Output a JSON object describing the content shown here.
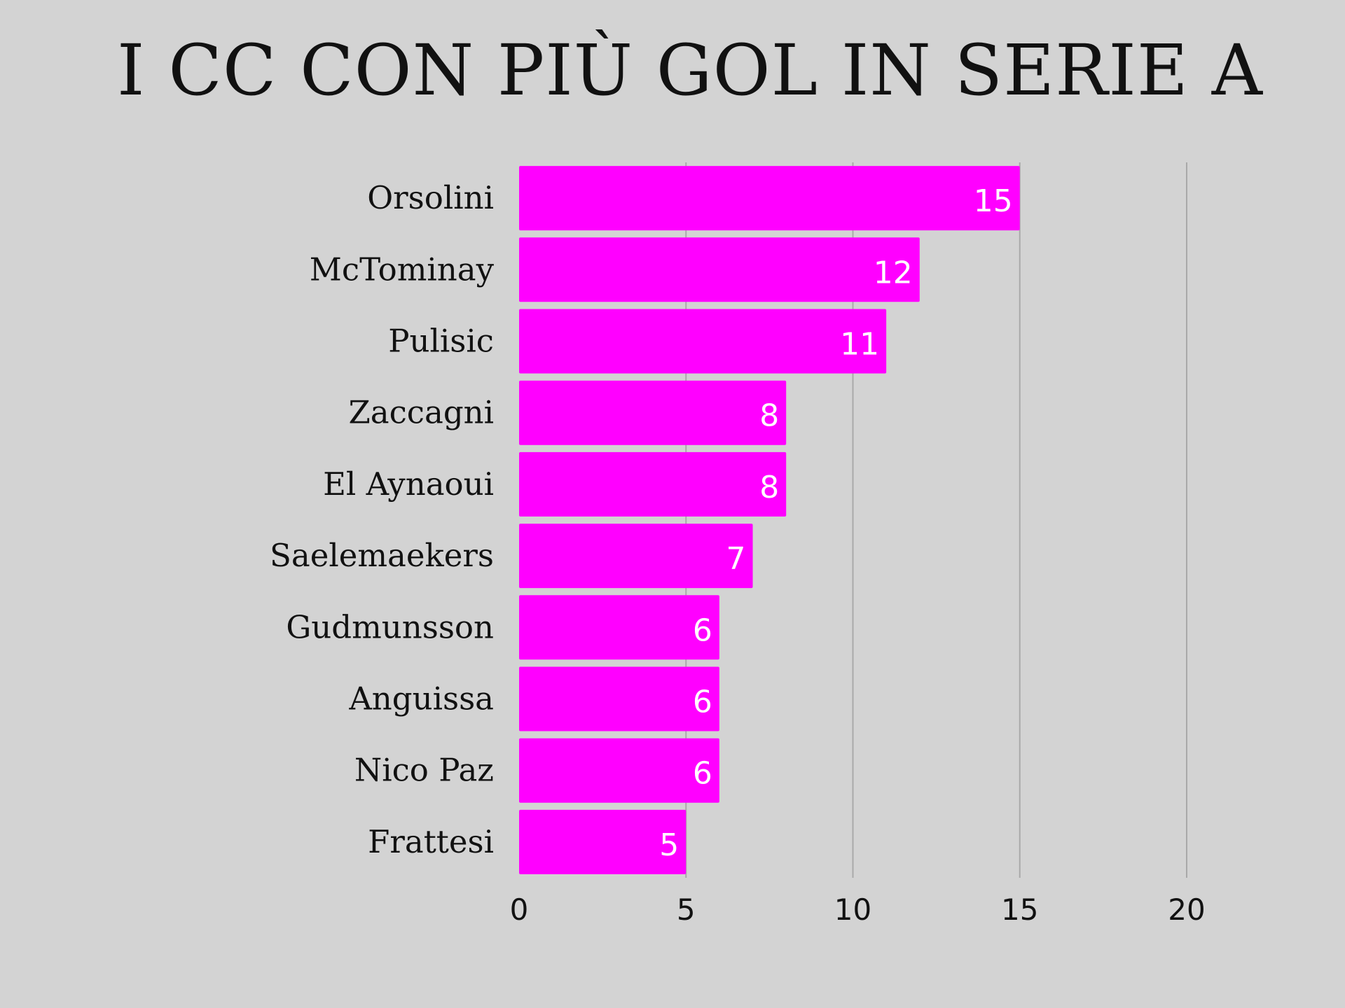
{
  "chart_data": {
    "type": "bar",
    "orientation": "horizontal",
    "title": "I CC CON PIÙ GOL IN SERIE A",
    "xlabel": "",
    "ylabel": "",
    "categories": [
      "Orsolini",
      "McTominay",
      "Pulisic",
      "Zaccagni",
      "El Aynaoui",
      "Saelemaekers",
      "Gudmunsson",
      "Anguissa",
      "Nico Paz",
      "Frattesi"
    ],
    "values": [
      15,
      12,
      11,
      8,
      8,
      7,
      6,
      6,
      6,
      5
    ],
    "xlim": [
      0,
      20
    ],
    "xticks": [
      0,
      5,
      10,
      15,
      20
    ],
    "grid": "vertical",
    "data_labels": true,
    "bar_color": "#ff00ff",
    "background_color": "#d3d3d3"
  }
}
